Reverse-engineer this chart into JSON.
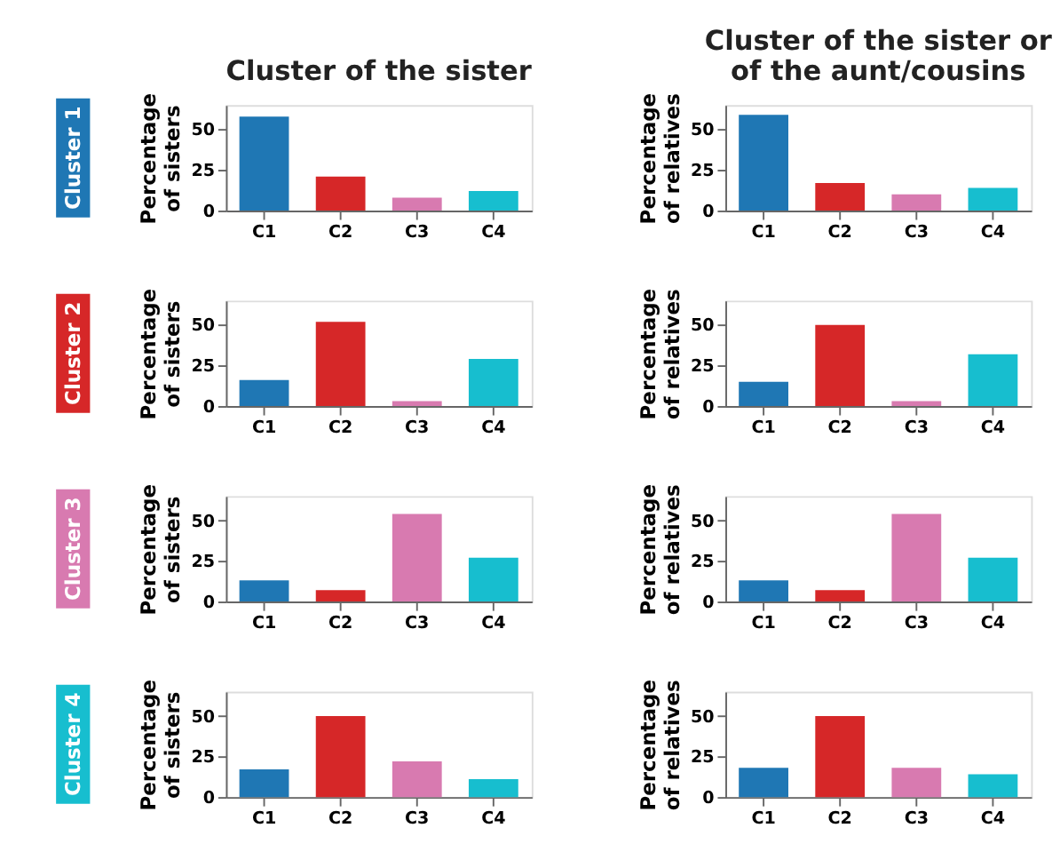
{
  "chart_data": [
    {
      "type": "bar",
      "title": "Cluster of the sister",
      "ylabel": "Percentage of sisters",
      "annotations": [
        "Cluster 1"
      ],
      "categories": [
        "C1",
        "C2",
        "C3",
        "C4"
      ],
      "values": [
        58,
        21,
        8,
        12
      ],
      "colors": [
        "#1f77b4",
        "#d62728",
        "#d87ab0",
        "#17becf"
      ],
      "ylim": [
        0,
        65
      ],
      "yticks": [
        0,
        25,
        50
      ]
    },
    {
      "type": "bar",
      "title": "Cluster of the sister or of the aunt/cousins",
      "ylabel": "Percentage of relatives",
      "categories": [
        "C1",
        "C2",
        "C3",
        "C4"
      ],
      "values": [
        59,
        17,
        10,
        14
      ],
      "colors": [
        "#1f77b4",
        "#d62728",
        "#d87ab0",
        "#17becf"
      ],
      "ylim": [
        0,
        65
      ],
      "yticks": [
        0,
        25,
        50
      ]
    },
    {
      "type": "bar",
      "ylabel": "Percentage of sisters",
      "annotations": [
        "Cluster 2"
      ],
      "categories": [
        "C1",
        "C2",
        "C3",
        "C4"
      ],
      "values": [
        16,
        52,
        3,
        29
      ],
      "colors": [
        "#1f77b4",
        "#d62728",
        "#d87ab0",
        "#17becf"
      ],
      "ylim": [
        0,
        65
      ],
      "yticks": [
        0,
        25,
        50
      ]
    },
    {
      "type": "bar",
      "ylabel": "Percentage of relatives",
      "categories": [
        "C1",
        "C2",
        "C3",
        "C4"
      ],
      "values": [
        15,
        50,
        3,
        32
      ],
      "colors": [
        "#1f77b4",
        "#d62728",
        "#d87ab0",
        "#17becf"
      ],
      "ylim": [
        0,
        65
      ],
      "yticks": [
        0,
        25,
        50
      ]
    },
    {
      "type": "bar",
      "ylabel": "Percentage of sisters",
      "annotations": [
        "Cluster 3"
      ],
      "categories": [
        "C1",
        "C2",
        "C3",
        "C4"
      ],
      "values": [
        13,
        7,
        54,
        27
      ],
      "colors": [
        "#1f77b4",
        "#d62728",
        "#d87ab0",
        "#17becf"
      ],
      "ylim": [
        0,
        65
      ],
      "yticks": [
        0,
        25,
        50
      ]
    },
    {
      "type": "bar",
      "ylabel": "Percentage of relatives",
      "categories": [
        "C1",
        "C2",
        "C3",
        "C4"
      ],
      "values": [
        13,
        7,
        54,
        27
      ],
      "colors": [
        "#1f77b4",
        "#d62728",
        "#d87ab0",
        "#17becf"
      ],
      "ylim": [
        0,
        65
      ],
      "yticks": [
        0,
        25,
        50
      ]
    },
    {
      "type": "bar",
      "ylabel": "Percentage of sisters",
      "annotations": [
        "Cluster 4"
      ],
      "categories": [
        "C1",
        "C2",
        "C3",
        "C4"
      ],
      "values": [
        17,
        50,
        22,
        11
      ],
      "colors": [
        "#1f77b4",
        "#d62728",
        "#d87ab0",
        "#17becf"
      ],
      "ylim": [
        0,
        65
      ],
      "yticks": [
        0,
        25,
        50
      ]
    },
    {
      "type": "bar",
      "ylabel": "Percentage of relatives",
      "categories": [
        "C1",
        "C2",
        "C3",
        "C4"
      ],
      "values": [
        18,
        50,
        18,
        14
      ],
      "colors": [
        "#1f77b4",
        "#d62728",
        "#d87ab0",
        "#17becf"
      ],
      "ylim": [
        0,
        65
      ],
      "yticks": [
        0,
        25,
        50
      ]
    }
  ]
}
